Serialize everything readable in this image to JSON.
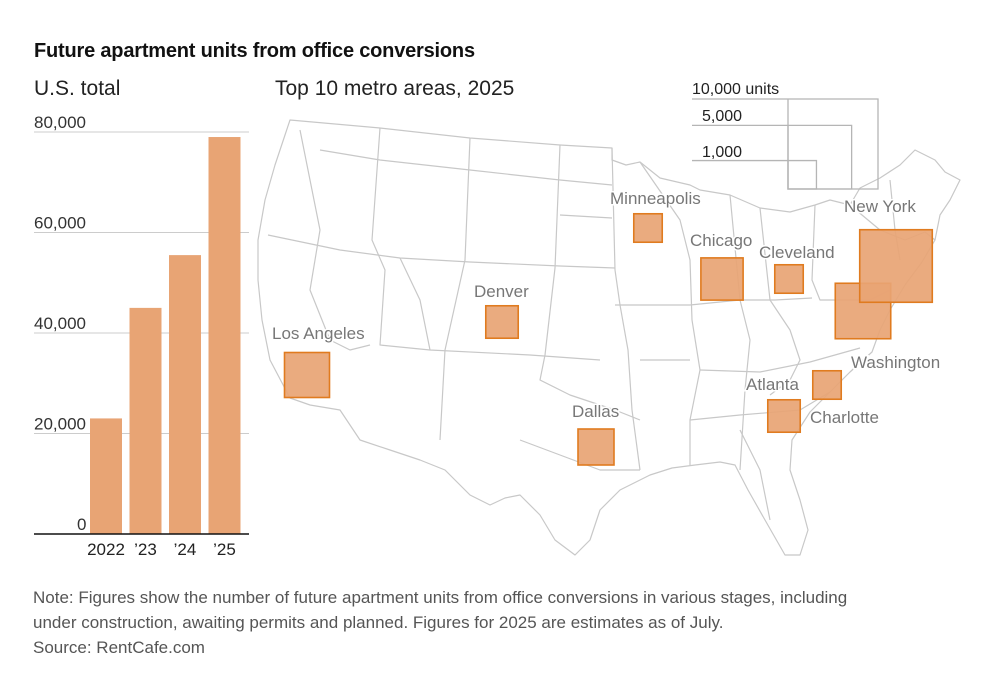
{
  "title": "Future apartment units from office conversions",
  "colors": {
    "bar_fill": "#e8a474",
    "square_fill": "#e8a474",
    "square_stroke": "#e07b1f",
    "map_line": "#c8c8c8",
    "grid": "#cccccc"
  },
  "chart_data": [
    {
      "type": "bar",
      "title": "U.S. total",
      "categories": [
        "2022",
        "’23",
        "’24",
        "’25"
      ],
      "values": [
        23000,
        45000,
        55500,
        79000
      ],
      "ylim": [
        0,
        80000
      ],
      "yticks": [
        0,
        20000,
        40000,
        60000,
        80000
      ],
      "ytick_labels": [
        "0",
        "20,000",
        "40,000",
        "60,000",
        "80,000"
      ],
      "grid": true
    },
    {
      "type": "proportional-squares map",
      "title": "Top 10 metro areas, 2025",
      "size_legend": {
        "labels": [
          "10,000 units",
          "5,000",
          "1,000"
        ],
        "values": [
          10000,
          5000,
          1000
        ]
      },
      "metros": [
        {
          "name": "Los Angeles",
          "units": 2500
        },
        {
          "name": "Denver",
          "units": 1300
        },
        {
          "name": "Minneapolis",
          "units": 1000
        },
        {
          "name": "Dallas",
          "units": 1600
        },
        {
          "name": "Chicago",
          "units": 2200
        },
        {
          "name": "Cleveland",
          "units": 1000
        },
        {
          "name": "Atlanta",
          "units": 1300
        },
        {
          "name": "Charlotte",
          "units": 1000
        },
        {
          "name": "Washington",
          "units": 3800
        },
        {
          "name": "New York",
          "units": 6500
        }
      ]
    }
  ],
  "note_lines": [
    "Note: Figures show the number of future apartment units from office conversions in various stages, including",
    "under construction, awaiting permits and planned. Figures for 2025 are estimates as of July."
  ],
  "source": "Source: RentCafe.com"
}
